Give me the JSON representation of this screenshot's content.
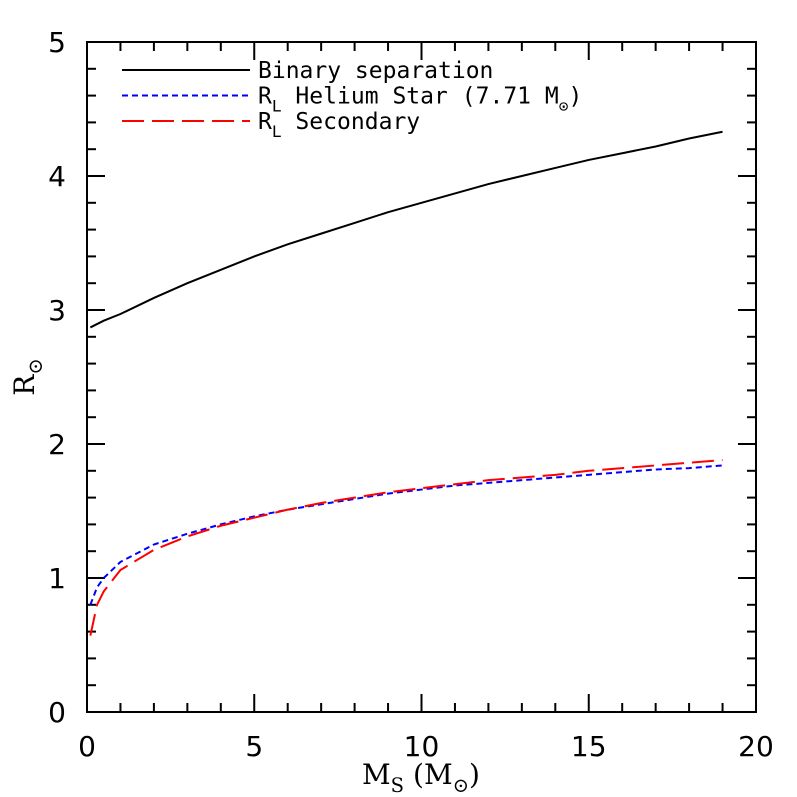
{
  "chart_data": {
    "type": "line",
    "x_label": "MS (M⊙)",
    "y_label": "R⊙",
    "xlim": [
      0,
      20
    ],
    "ylim": [
      0,
      5
    ],
    "xticks": [
      0,
      5,
      10,
      15,
      20
    ],
    "yticks": [
      0,
      1,
      2,
      3,
      4,
      5
    ],
    "minor_xticks": [
      1,
      2,
      3,
      4,
      6,
      7,
      8,
      9,
      11,
      12,
      13,
      14,
      16,
      17,
      18,
      19
    ],
    "minor_yticks": [
      0.2,
      0.4,
      0.6,
      0.8,
      1.2,
      1.4,
      1.6,
      1.8,
      2.2,
      2.4,
      2.6,
      2.8,
      3.2,
      3.4,
      3.6,
      3.8,
      4.2,
      4.4,
      4.6,
      4.8
    ],
    "legend": "upper left",
    "series": [
      {
        "name": "Binary separation",
        "color": "#000000",
        "dash": "solid",
        "x": [
          0.1,
          0.5,
          1,
          2,
          3,
          4,
          5,
          6,
          7,
          8,
          9,
          10,
          11,
          12,
          13,
          14,
          15,
          16,
          17,
          18,
          19
        ],
        "values": [
          2.87,
          2.92,
          2.97,
          3.09,
          3.2,
          3.3,
          3.4,
          3.49,
          3.57,
          3.65,
          3.73,
          3.8,
          3.87,
          3.94,
          4.0,
          4.06,
          4.12,
          4.17,
          4.22,
          4.28,
          4.33
        ]
      },
      {
        "name": "RL Helium Star (7.71 M⊙)",
        "color": "#0000ff",
        "dash": "short",
        "x": [
          0.1,
          0.3,
          0.5,
          1,
          2,
          3,
          4,
          5,
          6,
          7,
          8,
          9,
          10,
          11,
          12,
          13,
          14,
          15,
          16,
          17,
          18,
          19
        ],
        "values": [
          0.8,
          0.93,
          1.0,
          1.12,
          1.25,
          1.33,
          1.4,
          1.46,
          1.51,
          1.55,
          1.59,
          1.63,
          1.66,
          1.69,
          1.71,
          1.73,
          1.75,
          1.77,
          1.79,
          1.81,
          1.82,
          1.84
        ]
      },
      {
        "name": "RL Secondary",
        "color": "#ff0000",
        "dash": "long",
        "x": [
          0.1,
          0.3,
          0.5,
          1,
          2,
          3,
          4,
          5,
          6,
          7,
          8,
          9,
          10,
          11,
          12,
          13,
          14,
          15,
          16,
          17,
          18,
          19
        ],
        "values": [
          0.57,
          0.8,
          0.9,
          1.06,
          1.21,
          1.31,
          1.39,
          1.45,
          1.51,
          1.56,
          1.6,
          1.64,
          1.67,
          1.7,
          1.73,
          1.75,
          1.77,
          1.8,
          1.82,
          1.84,
          1.86,
          1.88
        ]
      }
    ]
  }
}
